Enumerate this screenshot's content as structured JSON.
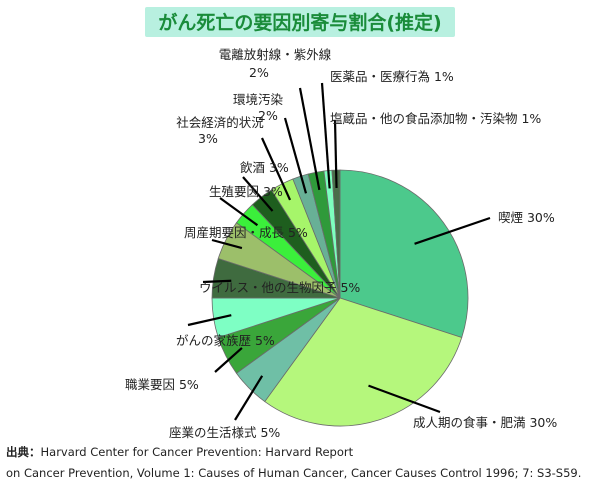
{
  "chart_data": {
    "type": "pie",
    "title": "がん死亡の要因別寄与割合(推定)",
    "unit": "%",
    "slices": [
      {
        "label": "喫煙",
        "value": 30,
        "color": "#4cc98c"
      },
      {
        "label": "成人期の食事・肥満",
        "value": 30,
        "color": "#b5f77c"
      },
      {
        "label": "座業の生活様式",
        "value": 5,
        "color": "#6fbfa6"
      },
      {
        "label": "職業要因",
        "value": 5,
        "color": "#3aa63a"
      },
      {
        "label": "がんの家族歴",
        "value": 5,
        "color": "#7effc4"
      },
      {
        "label": "ウイルス・他の生物因子",
        "value": 5,
        "color": "#3f6b3f"
      },
      {
        "label": "周産期要因・成長",
        "value": 5,
        "color": "#9cbf6a"
      },
      {
        "label": "生殖要因",
        "value": 3,
        "color": "#3bef3b"
      },
      {
        "label": "飲酒",
        "value": 3,
        "color": "#1e5e1e"
      },
      {
        "label": "社会経済的状況",
        "value": 3,
        "color": "#a6f56a"
      },
      {
        "label": "環境汚染",
        "value": 2,
        "color": "#68b096"
      },
      {
        "label": "電離放射線・紫外線",
        "value": 2,
        "color": "#2f9a3a"
      },
      {
        "label": "医薬品・医療行為",
        "value": 1,
        "color": "#7dffbe"
      },
      {
        "label": "塩蔵品・他の食品添加物・汚染物",
        "value": 1,
        "color": "#4a6f4a"
      }
    ],
    "slice_labels": [
      "喫煙 30%",
      "成人期の食事・肥満 30%",
      "座業の生活様式 5%",
      "職業要因 5%",
      "がんの家族歴 5%",
      "ウイルス・他の生物因子 5%",
      "周産期要因・成長 5%",
      "生殖要因 3%",
      "飲酒 3%",
      [
        "社会経済的状況",
        "3%"
      ],
      [
        "環境汚染",
        "2%"
      ],
      [
        "電離放射線・紫外線",
        "2%"
      ],
      "医薬品・医療行為 1%",
      "塩蔵品・他の食品添加物・汚染物 1%"
    ]
  },
  "source": {
    "label": "出典：",
    "line1": "Harvard Center for Cancer Prevention: Harvard Report",
    "line2": "on Cancer Prevention, Volume 1: Causes of Human Cancer, Cancer Causes Control 1996; 7: S3-S59."
  }
}
